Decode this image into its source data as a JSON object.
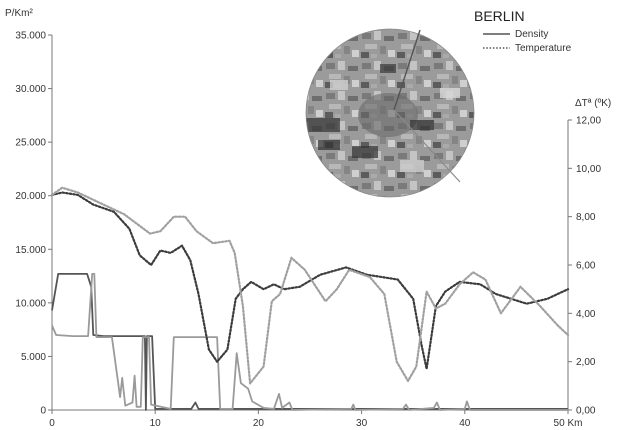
{
  "chart_data": {
    "type": "line",
    "title": "BERLIN",
    "left_axis": {
      "unit_label": "P/Km²",
      "range": [
        0,
        35000
      ],
      "ticks": [
        0,
        5000,
        10000,
        15000,
        20000,
        25000,
        30000,
        35000
      ],
      "tick_labels": [
        "0",
        "5.000",
        "10.000",
        "15.000",
        "20.000",
        "25.000",
        "30.000",
        "35.000"
      ]
    },
    "right_axis": {
      "unit_label": "ΔTª (ºK)",
      "range": [
        0,
        12
      ],
      "ticks": [
        0,
        2,
        4,
        6,
        8,
        10,
        12
      ],
      "tick_labels": [
        "0,00",
        "2,00",
        "4,00",
        "6,00",
        "8,00",
        "10,00",
        "12,00"
      ]
    },
    "x_axis": {
      "range": [
        0,
        50
      ],
      "ticks": [
        0,
        10,
        20,
        30,
        40,
        50
      ],
      "tick_labels": [
        "0",
        "10",
        "20",
        "30",
        "40",
        "50 Km"
      ]
    },
    "legend": {
      "position": "top-right",
      "entries": [
        {
          "label": "Density",
          "style": "solid"
        },
        {
          "label": "Temperature",
          "style": "dotted"
        }
      ]
    },
    "series": [
      {
        "name": "Density",
        "axis": "left",
        "style": "solid",
        "color": "#555555",
        "points": [
          [
            0,
            9300
          ],
          [
            0.6,
            12700
          ],
          [
            2,
            12700
          ],
          [
            3.4,
            12700
          ],
          [
            3.8,
            11500
          ],
          [
            4,
            7000
          ],
          [
            5,
            6900
          ],
          [
            7,
            6900
          ],
          [
            9,
            6900
          ],
          [
            9.1,
            0
          ],
          [
            9.2,
            6900
          ],
          [
            9.7,
            6900
          ],
          [
            10,
            100
          ],
          [
            13.5,
            100
          ],
          [
            13.9,
            700
          ],
          [
            14.2,
            100
          ],
          [
            20,
            100
          ],
          [
            50,
            100
          ]
        ]
      },
      {
        "name": "Density",
        "axis": "left",
        "style": "solid",
        "color": "#9a9a9a",
        "points": [
          [
            0,
            7900
          ],
          [
            0.4,
            7000
          ],
          [
            2,
            6900
          ],
          [
            3.5,
            6900
          ],
          [
            3.9,
            12700
          ],
          [
            4.1,
            12700
          ],
          [
            4.3,
            6800
          ],
          [
            5.8,
            6800
          ],
          [
            6.6,
            1200
          ],
          [
            6.8,
            3000
          ],
          [
            7.1,
            400
          ],
          [
            7.8,
            700
          ],
          [
            8,
            3200
          ],
          [
            8.2,
            300
          ],
          [
            8.6,
            300
          ],
          [
            8.8,
            6800
          ],
          [
            9.4,
            6800
          ],
          [
            9.6,
            500
          ],
          [
            11.5,
            100
          ],
          [
            11.8,
            6800
          ],
          [
            16,
            6800
          ],
          [
            16.3,
            100
          ],
          [
            17.5,
            100
          ],
          [
            17.9,
            5300
          ],
          [
            18.3,
            2500
          ],
          [
            19,
            2000
          ],
          [
            19.4,
            800
          ],
          [
            20.5,
            200
          ],
          [
            21.5,
            100
          ],
          [
            22,
            1500
          ],
          [
            22.3,
            200
          ],
          [
            23,
            700
          ],
          [
            23.3,
            0
          ],
          [
            29,
            100
          ],
          [
            29.2,
            500
          ],
          [
            29.4,
            0
          ],
          [
            34,
            100
          ],
          [
            34.3,
            500
          ],
          [
            34.6,
            0
          ],
          [
            37,
            200
          ],
          [
            37.3,
            700
          ],
          [
            37.6,
            0
          ],
          [
            40,
            100
          ],
          [
            40.2,
            800
          ],
          [
            40.5,
            0
          ],
          [
            50,
            0
          ]
        ]
      },
      {
        "name": "Temperature",
        "axis": "right",
        "style": "dotted",
        "color": "#3c3c3c",
        "points": [
          [
            0,
            8.9
          ],
          [
            1,
            9.0
          ],
          [
            2.5,
            8.9
          ],
          [
            4,
            8.5
          ],
          [
            6,
            8.2
          ],
          [
            7.5,
            7.5
          ],
          [
            8.5,
            6.4
          ],
          [
            9.6,
            6.0
          ],
          [
            10.5,
            6.6
          ],
          [
            11.5,
            6.5
          ],
          [
            12.6,
            6.8
          ],
          [
            13.4,
            6.2
          ],
          [
            14.2,
            4.8
          ],
          [
            15.2,
            2.5
          ],
          [
            16,
            2.0
          ],
          [
            17,
            2.5
          ],
          [
            17.8,
            4.6
          ],
          [
            18.5,
            5.0
          ],
          [
            19.3,
            5.3
          ],
          [
            20.5,
            5.0
          ],
          [
            21.5,
            5.2
          ],
          [
            22.5,
            5.0
          ],
          [
            24,
            5.1
          ],
          [
            26,
            5.6
          ],
          [
            28.5,
            5.9
          ],
          [
            30.5,
            5.6
          ],
          [
            33.5,
            5.4
          ],
          [
            35,
            4.6
          ],
          [
            35.8,
            2.7
          ],
          [
            36.3,
            1.7
          ],
          [
            37.2,
            4.3
          ],
          [
            38.1,
            4.9
          ],
          [
            39.5,
            5.3
          ],
          [
            41.5,
            5.2
          ],
          [
            43,
            4.8
          ],
          [
            46,
            4.4
          ],
          [
            48,
            4.6
          ],
          [
            50,
            5.0
          ]
        ]
      },
      {
        "name": "Temperature",
        "axis": "right",
        "style": "dotted",
        "color": "#a0a0a0",
        "points": [
          [
            0,
            8.9
          ],
          [
            1,
            9.2
          ],
          [
            2.5,
            9.0
          ],
          [
            4.5,
            8.6
          ],
          [
            7,
            8.1
          ],
          [
            9.5,
            7.3
          ],
          [
            10.5,
            7.4
          ],
          [
            11.8,
            8.0
          ],
          [
            12.9,
            8.0
          ],
          [
            14,
            7.4
          ],
          [
            15.6,
            6.9
          ],
          [
            17.2,
            7.0
          ],
          [
            17.7,
            6.5
          ],
          [
            18.5,
            4.3
          ],
          [
            19.2,
            1.1
          ],
          [
            20.5,
            1.8
          ],
          [
            21.3,
            4.5
          ],
          [
            22.1,
            4.8
          ],
          [
            23.2,
            6.3
          ],
          [
            24.5,
            5.8
          ],
          [
            26.5,
            4.5
          ],
          [
            27.6,
            5.0
          ],
          [
            28.8,
            5.8
          ],
          [
            30.8,
            5.5
          ],
          [
            32.2,
            4.8
          ],
          [
            33.4,
            2.0
          ],
          [
            34.5,
            1.2
          ],
          [
            35.3,
            1.8
          ],
          [
            36.3,
            4.9
          ],
          [
            37.2,
            4.2
          ],
          [
            38.1,
            4.4
          ],
          [
            39.5,
            5.2
          ],
          [
            40.8,
            5.7
          ],
          [
            42,
            5.4
          ],
          [
            43.5,
            4.0
          ],
          [
            45.4,
            5.1
          ],
          [
            47.3,
            4.3
          ],
          [
            49,
            3.5
          ],
          [
            50,
            3.1
          ]
        ]
      }
    ],
    "inset": {
      "type": "satellite-thermal-map",
      "shape": "circle"
    }
  }
}
